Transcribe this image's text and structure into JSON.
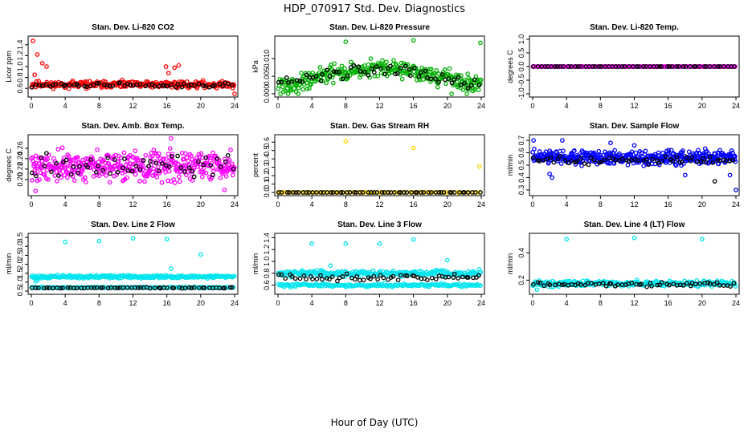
{
  "figure": {
    "title": "HDP_070917  Std. Dev. Diagnostics",
    "xlabel": "Hour of Day (UTC)"
  },
  "chart_data": [
    {
      "id": "co2",
      "type": "scatter",
      "title": "Stan. Dev. Li-820 CO2",
      "ylabel": "Licor ppm",
      "xlim": [
        0,
        24
      ],
      "ylim": [
        0.5,
        1.5
      ],
      "xticks": [
        0,
        4,
        8,
        12,
        16,
        20,
        24
      ],
      "yticks": [
        0.6,
        0.8,
        1.0,
        1.2,
        1.4
      ],
      "ytick_labels": [
        "0.6",
        "0.8",
        "1.0",
        "1.2",
        "1.4"
      ],
      "colors": {
        "main": "#ff0000",
        "secondary": "#000000"
      },
      "series": [
        {
          "color": "main",
          "band_center": 0.67,
          "band_halfwidth": 0.09,
          "n": 280,
          "seed": 11,
          "points": [
            [
              0.2,
              1.47
            ],
            [
              0.7,
              1.22
            ],
            [
              1.3,
              1.06
            ],
            [
              1.8,
              1.0
            ],
            [
              0.4,
              0.85
            ],
            [
              15.9,
              1.0
            ],
            [
              16.9,
              0.98
            ],
            [
              17.4,
              1.02
            ],
            [
              16.2,
              0.88
            ],
            [
              24.0,
              0.5
            ]
          ]
        },
        {
          "color": "secondary",
          "band_center": 0.66,
          "band_halfwidth": 0.06,
          "n": 60,
          "seed": 12,
          "points": []
        }
      ]
    },
    {
      "id": "pressure",
      "type": "scatter",
      "title": "Stan. Dev. Li-820 Pressure",
      "ylabel": "kPa",
      "xlim": [
        0,
        24
      ],
      "ylim": [
        0,
        0.0155
      ],
      "xticks": [
        0,
        4,
        8,
        12,
        16,
        20,
        24
      ],
      "yticks": [
        0.0,
        0.005,
        0.01
      ],
      "ytick_labels": [
        "0.000",
        "0.005",
        "0.010"
      ],
      "colors": {
        "main": "#00b000",
        "secondary": "#000000"
      },
      "series": [
        {
          "color": "main",
          "profile": "hump",
          "band_center": 0.0055,
          "band_halfwidth": 0.0035,
          "n": 320,
          "seed": 21,
          "points": [
            [
              8.0,
              0.0148
            ],
            [
              16.0,
              0.0152
            ],
            [
              23.9,
              0.0145
            ],
            [
              0.3,
              0.0
            ],
            [
              1.2,
              0.0
            ],
            [
              2.4,
              0.0
            ],
            [
              20.5,
              0.0
            ],
            [
              22.3,
              0.0
            ]
          ]
        },
        {
          "color": "secondary",
          "profile": "hump",
          "band_center": 0.0055,
          "band_halfwidth": 0.0025,
          "n": 60,
          "seed": 22,
          "points": []
        }
      ]
    },
    {
      "id": "temp",
      "type": "scatter",
      "title": "Stan. Dev. Li-820 Temp.",
      "ylabel": "degrees C",
      "xlim": [
        0,
        24
      ],
      "ylim": [
        -1,
        1
      ],
      "xticks": [
        0,
        4,
        8,
        12,
        16,
        20,
        24
      ],
      "yticks": [
        -1.0,
        -0.5,
        0.0,
        0.5,
        1.0
      ],
      "ytick_labels": [
        "-1.0",
        "-0.5",
        "0.0",
        "0.5",
        "1.0"
      ],
      "colors": {
        "main": "#ff00ff",
        "secondary": "#000000"
      },
      "series": [
        {
          "color": "main",
          "band_center": 0.0,
          "band_halfwidth": 0.0,
          "n": 160,
          "seed": 31,
          "points": []
        },
        {
          "color": "secondary",
          "band_center": 0.0,
          "band_halfwidth": 0.0,
          "n": 60,
          "seed": 32,
          "points": []
        }
      ]
    },
    {
      "id": "ambbox",
      "type": "scatter",
      "title": "Stan. Dev. Amb. Box Temp.",
      "ylabel": "degrees C",
      "xlim": [
        0,
        24
      ],
      "ylim": [
        0.175,
        0.28
      ],
      "xticks": [
        0,
        4,
        8,
        12,
        16,
        20,
        24
      ],
      "yticks": [
        0.2,
        0.22,
        0.24,
        0.26
      ],
      "ytick_labels": [
        "0.20",
        "0.22",
        "0.24",
        "0.26"
      ],
      "colors": {
        "main": "#ff00ff",
        "secondary": "#000000"
      },
      "series": [
        {
          "color": "main",
          "band_center": 0.225,
          "band_halfwidth": 0.04,
          "n": 420,
          "seed": 41,
          "points": [
            [
              16.5,
              0.279
            ],
            [
              0.5,
              0.178
            ],
            [
              22.8,
              0.18
            ]
          ]
        },
        {
          "color": "secondary",
          "band_center": 0.225,
          "band_halfwidth": 0.03,
          "n": 55,
          "seed": 42,
          "points": []
        }
      ]
    },
    {
      "id": "rh",
      "type": "scatter",
      "title": "Stan. Dev. Gas Stream RH",
      "ylabel": "percent",
      "xlim": [
        0,
        24
      ],
      "ylim": [
        0,
        0.65
      ],
      "xticks": [
        0,
        4,
        8,
        12,
        16,
        20,
        24
      ],
      "yticks": [
        0.0,
        0.1,
        0.2,
        0.3,
        0.4,
        0.5,
        0.6
      ],
      "ytick_labels": [
        "0.0",
        "0.1",
        "0.2",
        "0.3",
        "0.4",
        "0.5",
        "0.6"
      ],
      "colors": {
        "main": "#ffd700",
        "secondary": "#000000"
      },
      "series": [
        {
          "color": "main",
          "band_center": 0.0,
          "band_halfwidth": 0.0,
          "n": 100,
          "seed": 51,
          "points": [
            [
              8.0,
              0.61
            ],
            [
              16.0,
              0.53
            ],
            [
              23.8,
              0.31
            ],
            [
              0.2,
              0.0
            ]
          ]
        },
        {
          "color": "secondary",
          "band_center": 0.0,
          "band_halfwidth": 0.0,
          "n": 60,
          "seed": 52,
          "points": []
        }
      ]
    },
    {
      "id": "sampleflow",
      "type": "scatter",
      "title": "Stan. Dev. Sample Flow",
      "ylabel": "ml/min",
      "xlim": [
        0,
        24
      ],
      "ylim": [
        0.28,
        0.72
      ],
      "xticks": [
        0,
        4,
        8,
        12,
        16,
        20,
        24
      ],
      "yticks": [
        0.3,
        0.4,
        0.5,
        0.6,
        0.7
      ],
      "ytick_labels": [
        "0.3",
        "0.4",
        "0.5",
        "0.6",
        "0.7"
      ],
      "colors": {
        "main": "#0000ff",
        "secondary": "#000000"
      },
      "series": [
        {
          "color": "main",
          "band_center": 0.56,
          "band_halfwidth": 0.08,
          "n": 420,
          "seed": 61,
          "points": [
            [
              0.1,
              0.7
            ],
            [
              3.5,
              0.7
            ],
            [
              9.2,
              0.68
            ],
            [
              12.0,
              0.66
            ],
            [
              2.0,
              0.43
            ],
            [
              2.3,
              0.4
            ],
            [
              18.0,
              0.42
            ],
            [
              23.3,
              0.42
            ],
            [
              24.0,
              0.3
            ]
          ]
        },
        {
          "color": "secondary",
          "band_center": 0.54,
          "band_halfwidth": 0.05,
          "n": 60,
          "seed": 62,
          "points": [
            [
              21.5,
              0.37
            ]
          ]
        }
      ]
    },
    {
      "id": "line2",
      "type": "scatter",
      "title": "Stan. Dev. Line 2 Flow",
      "ylabel": "ml/min",
      "xlim": [
        0,
        24
      ],
      "ylim": [
        0.5,
        3.55
      ],
      "xticks": [
        0,
        4,
        8,
        12,
        16,
        20,
        24
      ],
      "yticks": [
        0.5,
        1.0,
        1.5,
        2.0,
        2.5,
        3.0,
        3.5
      ],
      "ytick_labels": [
        "0.5",
        "1.0",
        "1.5",
        "2.0",
        "2.5",
        "3.0",
        "3.5"
      ],
      "colors": {
        "main": "#00e5ee",
        "secondary": "#000000"
      },
      "series": [
        {
          "color": "main",
          "band_center": 1.3,
          "band_halfwidth": 0.12,
          "n": 260,
          "seed": 71,
          "points": [
            [
              4.0,
              3.25
            ],
            [
              8.0,
              3.3
            ],
            [
              12.0,
              3.45
            ],
            [
              16.0,
              3.4
            ],
            [
              20.0,
              2.55
            ],
            [
              16.5,
              1.75
            ],
            [
              0.5,
              1.05
            ],
            [
              0.7,
              1.1
            ]
          ]
        },
        {
          "color": "main",
          "band_center": 0.7,
          "band_halfwidth": 0.05,
          "n": 160,
          "seed": 73,
          "points": []
        },
        {
          "color": "secondary",
          "band_center": 0.68,
          "band_halfwidth": 0.04,
          "n": 60,
          "seed": 72,
          "points": []
        }
      ]
    },
    {
      "id": "line3",
      "type": "scatter",
      "title": "Stan. Dev. Line 3 Flow",
      "ylabel": "ml/min",
      "xlim": [
        0,
        24
      ],
      "ylim": [
        0.5,
        1.42
      ],
      "xticks": [
        0,
        4,
        8,
        12,
        16,
        20,
        24
      ],
      "yticks": [
        0.6,
        0.8,
        1.0,
        1.2,
        1.4
      ],
      "ytick_labels": [
        "0.6",
        "0.8",
        "1.0",
        "1.2",
        "1.4"
      ],
      "colors": {
        "main": "#00e5ee",
        "secondary": "#000000"
      },
      "series": [
        {
          "color": "main",
          "band_center": 0.8,
          "band_halfwidth": 0.08,
          "n": 240,
          "seed": 81,
          "points": [
            [
              4.0,
              1.3
            ],
            [
              8.0,
              1.3
            ],
            [
              12.0,
              1.3
            ],
            [
              16.0,
              1.37
            ],
            [
              20.0,
              1.02
            ],
            [
              6.2,
              0.93
            ]
          ]
        },
        {
          "color": "main",
          "band_center": 0.6,
          "band_halfwidth": 0.04,
          "n": 180,
          "seed": 83,
          "points": []
        },
        {
          "color": "secondary",
          "band_center": 0.73,
          "band_halfwidth": 0.08,
          "n": 60,
          "seed": 82,
          "points": []
        }
      ]
    },
    {
      "id": "line4",
      "type": "scatter",
      "title": "Stan. Dev. Line 4 (LT) Flow",
      "ylabel": "ml/min",
      "xlim": [
        0,
        24
      ],
      "ylim": [
        0.12,
        0.52
      ],
      "xticks": [
        0,
        4,
        8,
        12,
        16,
        20,
        24
      ],
      "yticks": [
        0.2,
        0.4
      ],
      "ytick_labels": [
        "0.2",
        "0.4"
      ],
      "colors": {
        "main": "#00e5ee",
        "secondary": "#000000"
      },
      "series": [
        {
          "color": "main",
          "band_center": 0.175,
          "band_halfwidth": 0.03,
          "n": 300,
          "seed": 91,
          "points": [
            [
              4.0,
              0.5
            ],
            [
              12.0,
              0.51
            ],
            [
              20.0,
              0.5
            ],
            [
              0.5,
              0.13
            ]
          ]
        },
        {
          "color": "secondary",
          "band_center": 0.17,
          "band_halfwidth": 0.025,
          "n": 60,
          "seed": 92,
          "points": []
        }
      ]
    }
  ]
}
